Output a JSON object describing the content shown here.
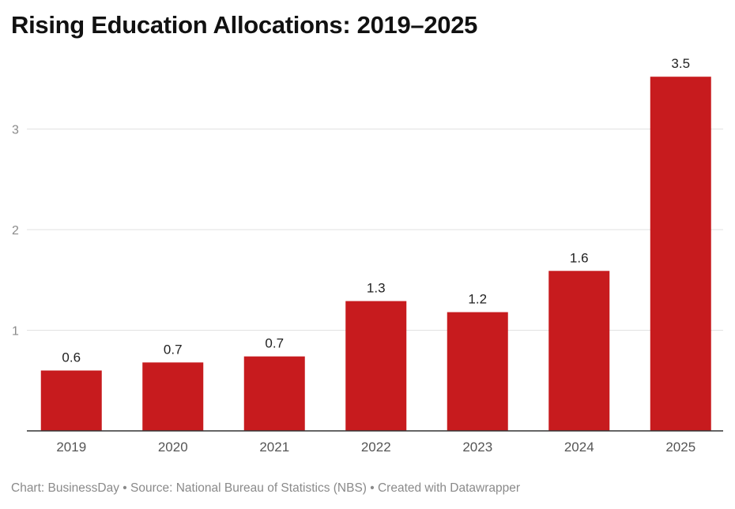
{
  "title": "Rising Education Allocations: 2019–2025",
  "footer": "Chart: BusinessDay • Source: National Bureau of Statistics (NBS) • Created with Datawrapper",
  "colors": {
    "bar": "#c71b1e",
    "grid": "#e2e2e2",
    "axis": "#333333"
  },
  "chart_data": {
    "type": "bar",
    "title": "Rising Education Allocations: 2019–2025",
    "xlabel": "",
    "ylabel": "",
    "categories": [
      "2019",
      "2020",
      "2021",
      "2022",
      "2023",
      "2024",
      "2025"
    ],
    "values": [
      0.6,
      0.68,
      0.74,
      1.29,
      1.18,
      1.59,
      3.52
    ],
    "data_labels": [
      "0.6",
      "0.7",
      "0.7",
      "1.3",
      "1.2",
      "1.6",
      "3.5"
    ],
    "yticks": [
      1,
      2,
      3
    ],
    "ylim": [
      0,
      3.6
    ],
    "grid": true,
    "legend": "none"
  }
}
